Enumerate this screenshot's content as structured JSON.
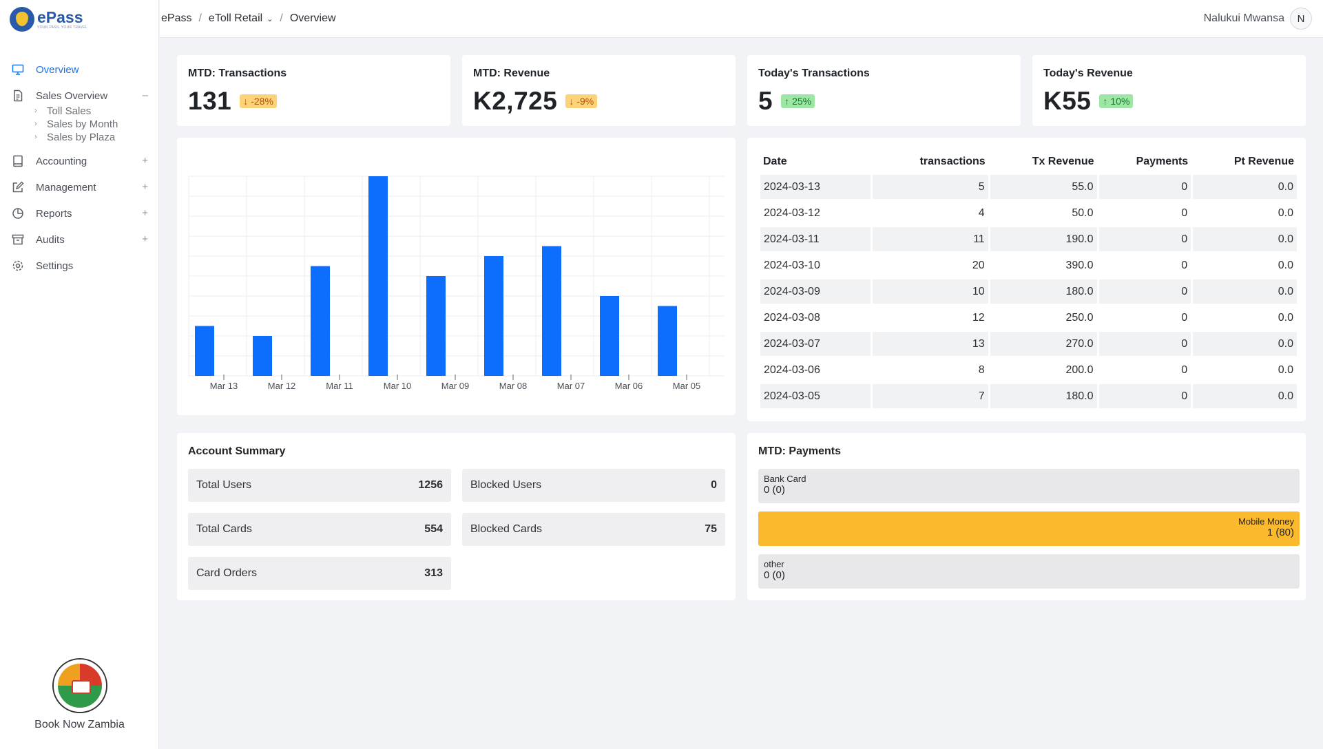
{
  "app": {
    "logo_name": "ePass",
    "logo_sub": "YOUR PASS, YOUR TRAVEL"
  },
  "sidebar": {
    "items": [
      {
        "label": "Overview",
        "icon": "monitor-icon",
        "active": true
      },
      {
        "label": "Sales Overview",
        "icon": "document-icon",
        "toggle": "–",
        "children": [
          "Toll Sales",
          "Sales by Month",
          "Sales by Plaza"
        ]
      },
      {
        "label": "Accounting",
        "icon": "book-icon",
        "toggle": "+"
      },
      {
        "label": "Management",
        "icon": "edit-icon",
        "toggle": "+"
      },
      {
        "label": "Reports",
        "icon": "pie-chart-icon",
        "toggle": "+"
      },
      {
        "label": "Audits",
        "icon": "archive-icon",
        "toggle": "+"
      },
      {
        "label": "Settings",
        "icon": "gear-icon"
      }
    ],
    "brand_name": "Book Now Zambia"
  },
  "header": {
    "breadcrumb": [
      "ePass",
      "eToll Retail",
      "Overview"
    ],
    "user_name": "Nalukui Mwansa",
    "user_initial": "N"
  },
  "kpis": [
    {
      "title": "MTD: Transactions",
      "value": "131",
      "change": "-28%",
      "direction": "down"
    },
    {
      "title": "MTD: Revenue",
      "value": "K2,725",
      "change": "-9%",
      "direction": "down"
    },
    {
      "title": "Today's Transactions",
      "value": "5",
      "change": "25%",
      "direction": "up"
    },
    {
      "title": "Today's Revenue",
      "value": "K55",
      "change": "10%",
      "direction": "up"
    }
  ],
  "colors": {
    "accent": "#1a73e8",
    "bar": "#0d6efd",
    "badge_down": "#fdd37a",
    "badge_up": "#9ee6a6",
    "mobile_money": "#fbba2d"
  },
  "chart_data": {
    "type": "bar",
    "categories": [
      "Mar 13",
      "Mar 12",
      "Mar 11",
      "Mar 10",
      "Mar 09",
      "Mar 08",
      "Mar 07",
      "Mar 06",
      "Mar 05"
    ],
    "values": [
      5,
      4,
      11,
      20,
      10,
      12,
      13,
      8,
      7
    ],
    "ylim": [
      0,
      20
    ],
    "grid": true
  },
  "table": {
    "headers": [
      "Date",
      "transactions",
      "Tx Revenue",
      "Payments",
      "Pt Revenue"
    ],
    "rows": [
      [
        "2024-03-13",
        "5",
        "55.0",
        "0",
        "0.0"
      ],
      [
        "2024-03-12",
        "4",
        "50.0",
        "0",
        "0.0"
      ],
      [
        "2024-03-11",
        "11",
        "190.0",
        "0",
        "0.0"
      ],
      [
        "2024-03-10",
        "20",
        "390.0",
        "0",
        "0.0"
      ],
      [
        "2024-03-09",
        "10",
        "180.0",
        "0",
        "0.0"
      ],
      [
        "2024-03-08",
        "12",
        "250.0",
        "0",
        "0.0"
      ],
      [
        "2024-03-07",
        "13",
        "270.0",
        "0",
        "0.0"
      ],
      [
        "2024-03-06",
        "8",
        "200.0",
        "0",
        "0.0"
      ],
      [
        "2024-03-05",
        "7",
        "180.0",
        "0",
        "0.0"
      ]
    ]
  },
  "account_summary": {
    "title": "Account Summary",
    "total_users_label": "Total Users",
    "total_users": "1256",
    "blocked_users_label": "Blocked Users",
    "blocked_users": "0",
    "total_cards_label": "Total Cards",
    "total_cards": "554",
    "blocked_cards_label": "Blocked Cards",
    "blocked_cards": "75",
    "card_orders_label": "Card Orders",
    "card_orders": "313"
  },
  "payments": {
    "title": "MTD: Payments",
    "items": [
      {
        "label": "Bank Card",
        "value": "0 (0)"
      },
      {
        "label": "Mobile Money",
        "value": "1 (80)"
      },
      {
        "label": "other",
        "value": "0 (0)"
      }
    ]
  }
}
